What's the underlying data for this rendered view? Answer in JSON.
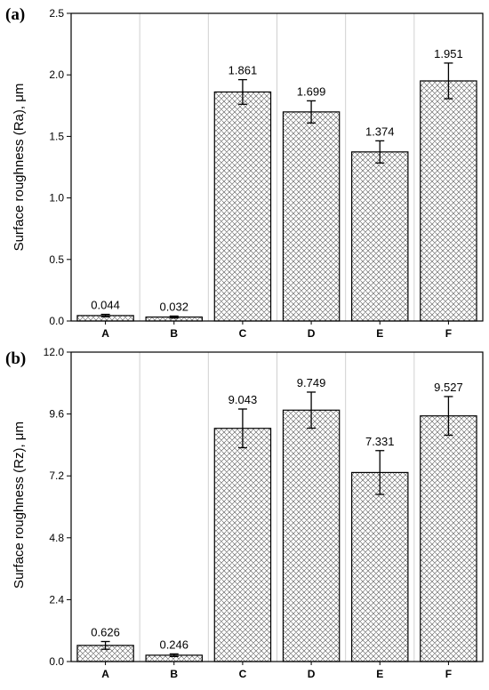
{
  "chart_data": [
    {
      "type": "bar",
      "panel_label": "(a)",
      "ylabel": "Surface roughness (Ra), μm",
      "categories": [
        "A",
        "B",
        "C",
        "D",
        "E",
        "F"
      ],
      "values": [
        0.044,
        0.032,
        1.861,
        1.699,
        1.374,
        1.951
      ],
      "value_labels": [
        "0.044",
        "0.032",
        "1.861",
        "1.699",
        "1.374",
        "1.951"
      ],
      "error": [
        0.01,
        0.008,
        0.1,
        0.09,
        0.09,
        0.145
      ],
      "ylim": [
        0,
        2.5
      ],
      "yticks": [
        "0.0",
        "0.5",
        "1.0",
        "1.5",
        "2.0",
        "2.5"
      ],
      "grid": "vertical",
      "bar_pattern": "crosshatch"
    },
    {
      "type": "bar",
      "panel_label": "(b)",
      "ylabel": "Surface roughness (Rz), μm",
      "categories": [
        "A",
        "B",
        "C",
        "D",
        "E",
        "F"
      ],
      "values": [
        0.626,
        0.246,
        9.043,
        9.749,
        7.331,
        9.527
      ],
      "value_labels": [
        "0.626",
        "0.246",
        "9.043",
        "9.749",
        "7.331",
        "9.527"
      ],
      "error": [
        0.15,
        0.05,
        0.75,
        0.7,
        0.85,
        0.75
      ],
      "ylim": [
        0,
        12.0
      ],
      "yticks": [
        "0.0",
        "2.4",
        "4.8",
        "7.2",
        "9.6",
        "12.0"
      ],
      "grid": "vertical",
      "bar_pattern": "crosshatch"
    }
  ]
}
